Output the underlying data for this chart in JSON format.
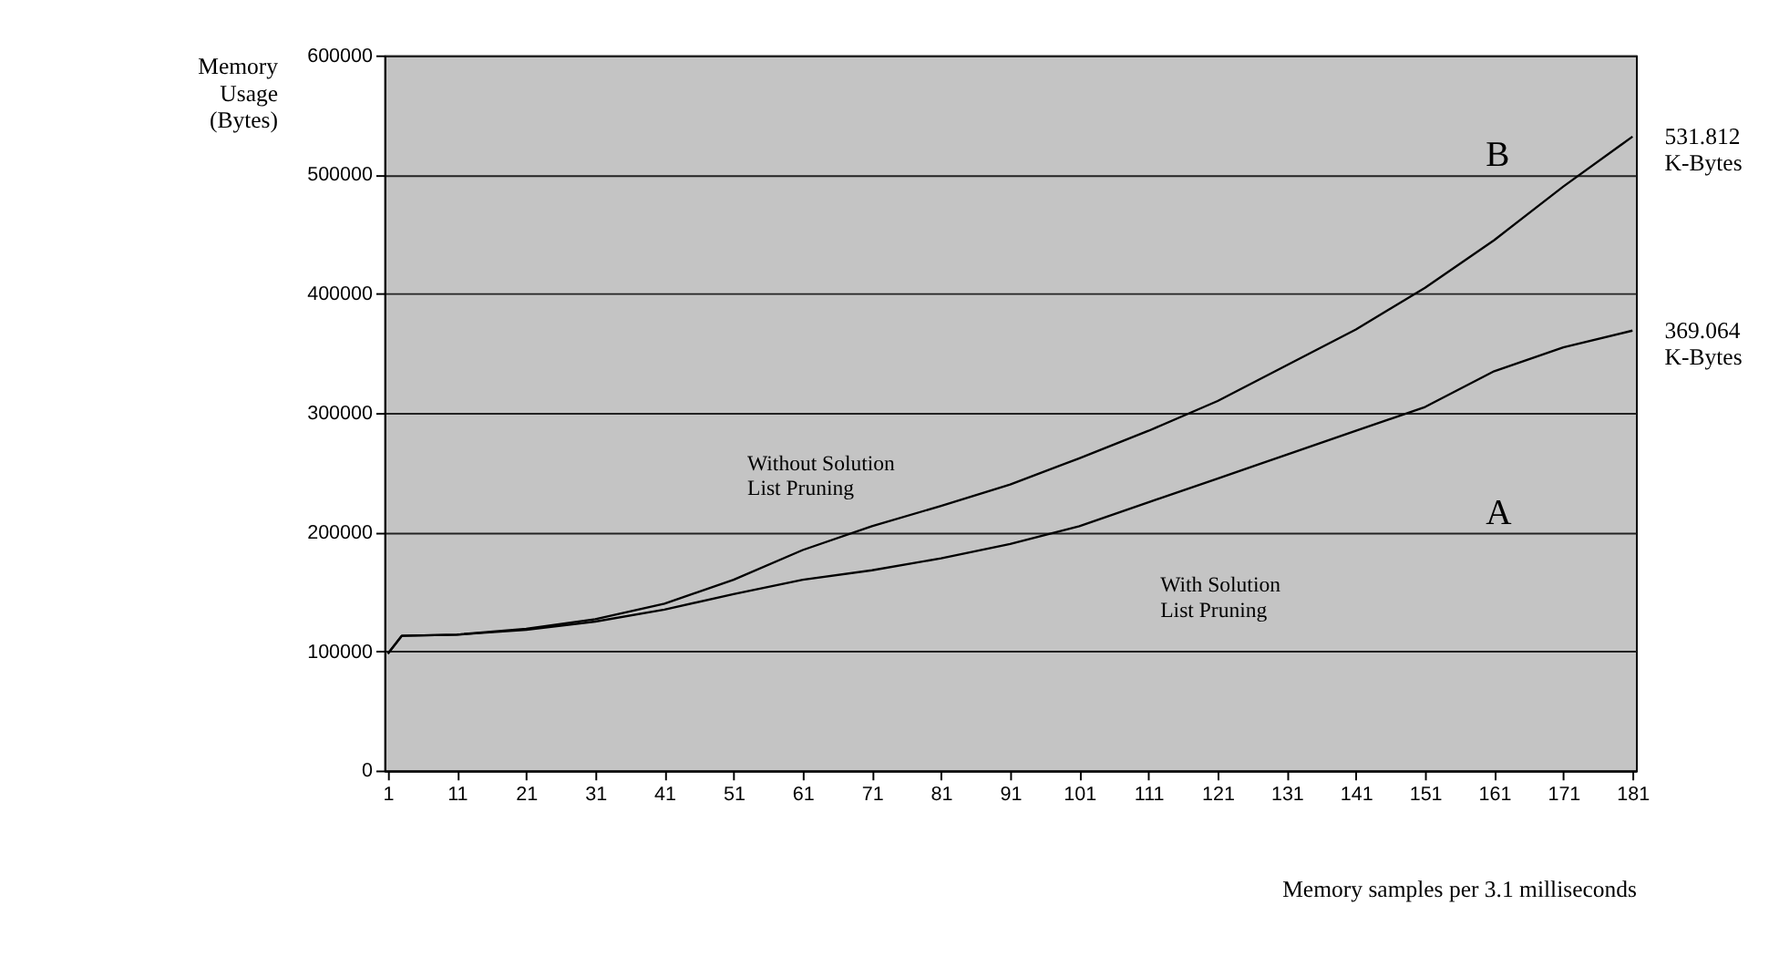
{
  "chart_data": {
    "type": "line",
    "xlabel": "Memory samples per 3.1 milliseconds",
    "ylabel": "Memory Usage (Bytes)",
    "x": [
      1,
      3,
      11,
      21,
      31,
      41,
      51,
      61,
      71,
      81,
      91,
      101,
      111,
      121,
      131,
      141,
      151,
      161,
      171,
      181
    ],
    "series": [
      {
        "color": "#000000",
        "values": [
          98000,
          113000,
          114000,
          118000,
          125000,
          135000,
          148000,
          160000,
          168000,
          178000,
          190000,
          205000,
          225000,
          245000,
          265000,
          285000,
          305000,
          335000,
          355000,
          369064
        ]
      },
      {
        "color": "#000000",
        "values": [
          98000,
          113000,
          114000,
          119000,
          127000,
          140000,
          160000,
          185000,
          205000,
          222000,
          240000,
          262000,
          285000,
          310000,
          340000,
          370000,
          405000,
          445000,
          490000,
          531812
        ]
      }
    ],
    "xlim": [
      0.5,
      181.5
    ],
    "xticks": [
      1,
      11,
      21,
      31,
      41,
      51,
      61,
      71,
      81,
      91,
      101,
      111,
      121,
      131,
      141,
      151,
      161,
      171,
      181
    ],
    "ylim": [
      0,
      600000
    ],
    "yticks": [
      0,
      100000,
      200000,
      300000,
      400000,
      500000,
      600000
    ],
    "grid": "y",
    "legend": false,
    "annotations": [
      "B",
      "A",
      "Without Solution\nList Pruning",
      "With Solution\nList Pruning",
      {
        "text": "531.812\nK-Bytes",
        "x": 181,
        "y": 531812
      },
      {
        "text": "369.064\nK-Bytes",
        "x": 181,
        "y": 369064
      }
    ]
  }
}
